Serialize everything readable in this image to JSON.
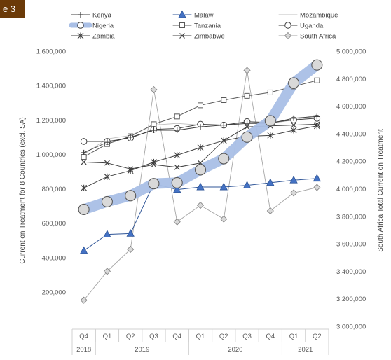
{
  "figure_tag": "e 3",
  "chart_data": {
    "type": "line",
    "quarters": [
      "Q4",
      "Q1",
      "Q2",
      "Q3",
      "Q4",
      "Q1",
      "Q2",
      "Q3",
      "Q4",
      "Q1",
      "Q2"
    ],
    "years": [
      {
        "label": "2018",
        "quarters": 1
      },
      {
        "label": "2019",
        "quarters": 4
      },
      {
        "label": "2020",
        "quarters": 4
      },
      {
        "label": "2021",
        "quarters": 2
      }
    ],
    "ylabel": "Current on Treatment for 8 Countries (excl. SA)",
    "y2label": "South Africa Total Current on Treatment",
    "ylim": [
      0,
      1600000
    ],
    "y2lim": [
      3000000,
      5000000
    ],
    "yticks": [
      "",
      "200,000",
      "400,000",
      "600,000",
      "800,000",
      "1,000,000",
      "1,200,000",
      "1,400,000",
      "1,600,000"
    ],
    "y2ticks": [
      "3,000,000",
      "3,200,000",
      "3,400,000",
      "3,600,000",
      "3,800,000",
      "4,000,000",
      "4,200,000",
      "4,400,000",
      "4,600,000",
      "4,800,000",
      "5,000,000"
    ],
    "grid": false,
    "legend": "top",
    "series": [
      {
        "name": "Kenya",
        "axis": "left",
        "marker": "plus",
        "color": "#404040",
        "values": [
          1010000,
          1070000,
          1100000,
          1140000,
          1140000,
          1160000,
          1170000,
          1180000,
          1180000,
          1210000,
          1220000
        ]
      },
      {
        "name": "Malawi",
        "axis": "left",
        "marker": "triangle",
        "color": "#2f5597",
        "values": [
          440000,
          535000,
          540000,
          830000,
          795000,
          810000,
          810000,
          820000,
          835000,
          850000,
          860000
        ]
      },
      {
        "name": "Mozambique",
        "axis": "left",
        "marker": "none",
        "color": "#bfbfbf",
        "values": [
          1000000,
          1090000,
          1110000,
          1170000,
          1180000,
          1170000,
          1170000,
          1190000,
          1180000,
          1200000,
          1230000
        ]
      },
      {
        "name": "Nigeria",
        "axis": "left",
        "marker": "circle-large",
        "color": "#a9bfe6",
        "values": [
          680000,
          725000,
          760000,
          830000,
          835000,
          910000,
          975000,
          1100000,
          1195000,
          1415000,
          1520000
        ]
      },
      {
        "name": "Tanzania",
        "axis": "left",
        "marker": "square",
        "color": "#595959",
        "values": [
          985000,
          1060000,
          1105000,
          1175000,
          1220000,
          1285000,
          1315000,
          1340000,
          1360000,
          1395000,
          1430000
        ]
      },
      {
        "name": "Uganda",
        "axis": "left",
        "marker": "circle",
        "color": "#404040",
        "values": [
          1075000,
          1075000,
          1095000,
          1145000,
          1150000,
          1175000,
          1170000,
          1190000,
          1185000,
          1200000,
          1210000
        ]
      },
      {
        "name": "Zambia",
        "axis": "left",
        "marker": "star",
        "color": "#404040",
        "values": [
          805000,
          870000,
          905000,
          955000,
          995000,
          1040000,
          1080000,
          1105000,
          1110000,
          1140000,
          1165000
        ]
      },
      {
        "name": "Zimbabwe",
        "axis": "left",
        "marker": "x",
        "color": "#404040",
        "values": [
          955000,
          950000,
          915000,
          940000,
          925000,
          950000,
          1080000,
          1160000,
          1165000,
          1170000,
          1175000
        ]
      },
      {
        "name": "South Africa",
        "axis": "right",
        "marker": "diamond",
        "color": "#a6a6a6",
        "values": [
          3190000,
          3400000,
          3560000,
          4720000,
          3760000,
          3880000,
          3780000,
          4860000,
          3840000,
          3970000,
          4010000
        ]
      }
    ]
  }
}
